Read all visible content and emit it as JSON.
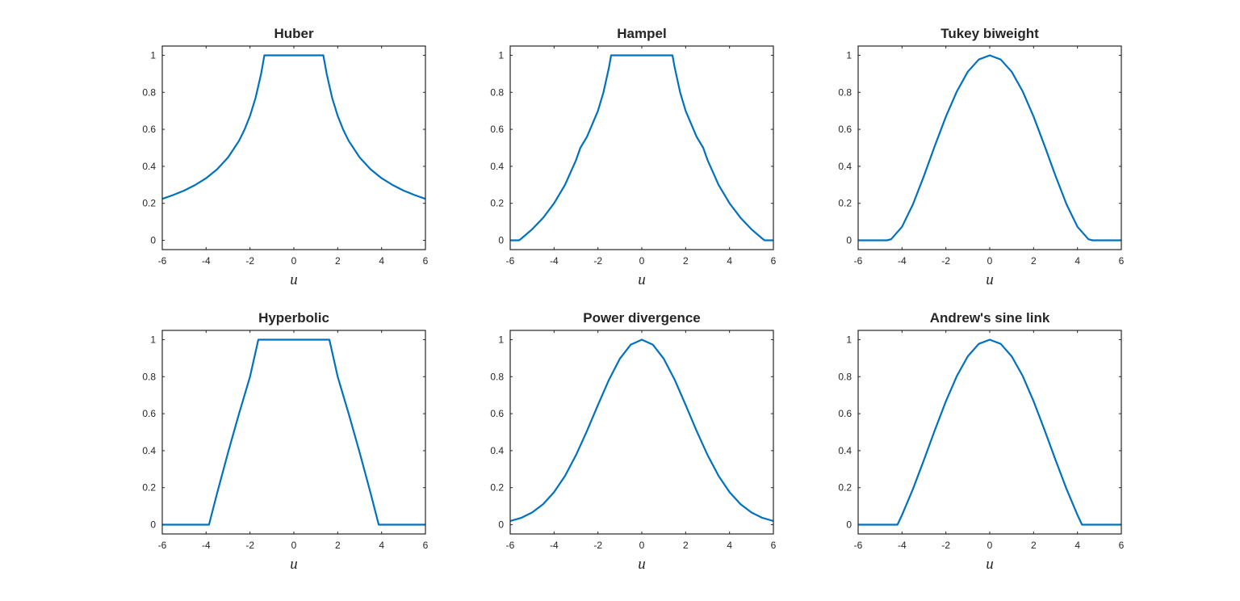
{
  "chart_data": [
    {
      "type": "line",
      "title": "Huber",
      "xlabel": "u",
      "xlim": [
        -6,
        6
      ],
      "ylim": [
        -0.05,
        1.05
      ],
      "xticks": [
        "-6",
        "-4",
        "-2",
        "0",
        "2",
        "4",
        "6"
      ],
      "yticks": [
        "0",
        "0.2",
        "0.4",
        "0.6",
        "0.8",
        "1"
      ],
      "color": "#0072BD",
      "x": [
        -6,
        -5.5,
        -5,
        -4.5,
        -4,
        -3.5,
        -3,
        -2.5,
        -2.25,
        -2,
        -1.75,
        -1.5,
        -1.345,
        1.345,
        1.5,
        1.75,
        2,
        2.25,
        2.5,
        3,
        3.5,
        4,
        4.5,
        5,
        5.5,
        6
      ],
      "y": [
        0.224,
        0.245,
        0.269,
        0.299,
        0.336,
        0.384,
        0.448,
        0.538,
        0.598,
        0.673,
        0.769,
        0.897,
        1,
        1,
        0.897,
        0.769,
        0.673,
        0.598,
        0.538,
        0.448,
        0.384,
        0.336,
        0.299,
        0.269,
        0.245,
        0.224
      ]
    },
    {
      "type": "line",
      "title": "Hampel",
      "xlabel": "u",
      "xlim": [
        -6,
        6
      ],
      "ylim": [
        -0.05,
        1.05
      ],
      "xticks": [
        "-6",
        "-4",
        "-2",
        "0",
        "2",
        "4",
        "6"
      ],
      "yticks": [
        "0",
        "0.2",
        "0.4",
        "0.6",
        "0.8",
        "1"
      ],
      "color": "#0072BD",
      "x": [
        -6,
        -5.6,
        -5.5,
        -5,
        -4.5,
        -4,
        -3.5,
        -3,
        -2.8,
        -2.5,
        -2,
        -1.75,
        -1.5,
        -1.4,
        1.4,
        1.5,
        1.75,
        2,
        2.5,
        2.8,
        3,
        3.5,
        4,
        4.5,
        5,
        5.5,
        5.6,
        6
      ],
      "y": [
        0,
        0,
        0.009,
        0.06,
        0.122,
        0.2,
        0.3,
        0.433,
        0.5,
        0.56,
        0.7,
        0.8,
        0.933,
        1,
        1,
        0.933,
        0.8,
        0.7,
        0.56,
        0.5,
        0.433,
        0.3,
        0.2,
        0.122,
        0.06,
        0.009,
        0,
        0
      ]
    },
    {
      "type": "line",
      "title": "Tukey biweight",
      "xlabel": "u",
      "xlim": [
        -6,
        6
      ],
      "ylim": [
        -0.05,
        1.05
      ],
      "xticks": [
        "-6",
        "-4",
        "-2",
        "0",
        "2",
        "4",
        "6"
      ],
      "yticks": [
        "0",
        "0.2",
        "0.4",
        "0.6",
        "0.8",
        "1"
      ],
      "color": "#0072BD",
      "x": [
        -6,
        -5,
        -4.685,
        -4.5,
        -4,
        -3.5,
        -3,
        -2.5,
        -2,
        -1.5,
        -1,
        -0.5,
        0,
        0.5,
        1,
        1.5,
        2,
        2.5,
        3,
        3.5,
        4,
        4.5,
        4.685,
        5,
        6
      ],
      "y": [
        0,
        0,
        0,
        0.006,
        0.073,
        0.195,
        0.348,
        0.512,
        0.669,
        0.805,
        0.911,
        0.977,
        1,
        0.977,
        0.911,
        0.805,
        0.669,
        0.512,
        0.348,
        0.195,
        0.073,
        0.006,
        0,
        0,
        0
      ]
    },
    {
      "type": "line",
      "title": "Hyperbolic",
      "xlabel": "u",
      "xlim": [
        -6,
        6
      ],
      "ylim": [
        -0.05,
        1.05
      ],
      "xticks": [
        "-6",
        "-4",
        "-2",
        "0",
        "2",
        "4",
        "6"
      ],
      "yticks": [
        "0",
        "0.2",
        "0.4",
        "0.6",
        "0.8",
        "1"
      ],
      "color": "#0072BD",
      "x": [
        -6,
        -3.87,
        -3.5,
        -3,
        -2.5,
        -2,
        -1.62,
        1.62,
        2,
        2.5,
        3,
        3.5,
        3.87,
        6
      ],
      "y": [
        0,
        0,
        0.17,
        0.39,
        0.6,
        0.8,
        1,
        1,
        0.8,
        0.6,
        0.39,
        0.17,
        0,
        0
      ]
    },
    {
      "type": "line",
      "title": "Power divergence",
      "xlabel": "u",
      "xlim": [
        -6,
        6
      ],
      "ylim": [
        -0.05,
        1.05
      ],
      "xticks": [
        "-6",
        "-4",
        "-2",
        "0",
        "2",
        "4",
        "6"
      ],
      "yticks": [
        "0",
        "0.2",
        "0.4",
        "0.6",
        "0.8",
        "1"
      ],
      "color": "#0072BD",
      "x": [
        -6,
        -5.5,
        -5,
        -4.5,
        -4,
        -3.5,
        -3,
        -2.5,
        -2,
        -1.5,
        -1,
        -0.5,
        0,
        0.5,
        1,
        1.5,
        2,
        2.5,
        3,
        3.5,
        4,
        4.5,
        5,
        5.5,
        6
      ],
      "y": [
        0.02,
        0.037,
        0.066,
        0.111,
        0.176,
        0.264,
        0.376,
        0.507,
        0.647,
        0.783,
        0.897,
        0.973,
        1,
        0.973,
        0.897,
        0.783,
        0.647,
        0.507,
        0.376,
        0.264,
        0.176,
        0.111,
        0.066,
        0.037,
        0.02
      ]
    },
    {
      "type": "line",
      "title": "Andrew's sine link",
      "xlabel": "u",
      "xlim": [
        -6,
        6
      ],
      "ylim": [
        -0.05,
        1.05
      ],
      "xticks": [
        "-6",
        "-4",
        "-2",
        "0",
        "2",
        "4",
        "6"
      ],
      "yticks": [
        "0",
        "0.2",
        "0.4",
        "0.6",
        "0.8",
        "1"
      ],
      "color": "#0072BD",
      "x": [
        -6,
        -4.5,
        -4.207,
        -4,
        -3.5,
        -3,
        -2.5,
        -2,
        -1.5,
        -1,
        -0.5,
        0,
        0.5,
        1,
        1.5,
        2,
        2.5,
        3,
        3.5,
        4,
        4.207,
        4.5,
        6
      ],
      "y": [
        0,
        0,
        0,
        0.052,
        0.193,
        0.35,
        0.512,
        0.667,
        0.804,
        0.91,
        0.977,
        1,
        0.977,
        0.91,
        0.804,
        0.667,
        0.512,
        0.35,
        0.193,
        0.052,
        0,
        0,
        0
      ]
    }
  ]
}
